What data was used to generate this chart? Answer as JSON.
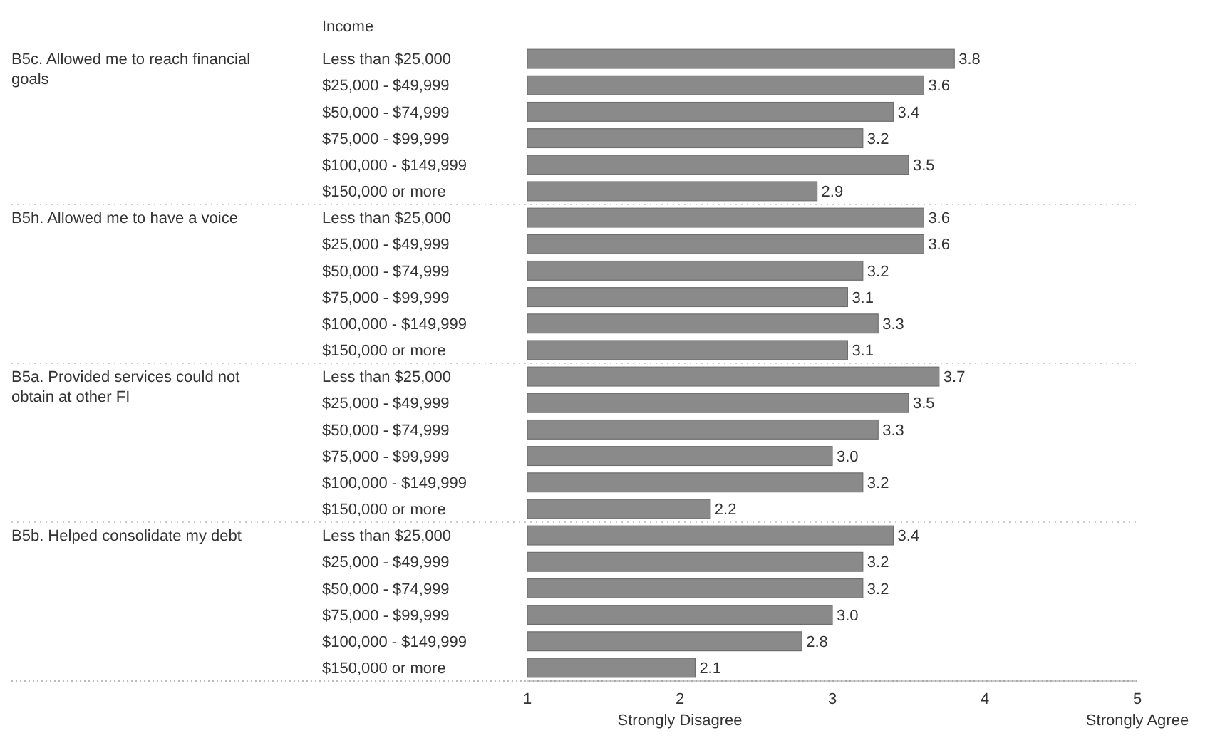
{
  "chart_data": {
    "type": "bar",
    "orientation": "horizontal",
    "ylabel": "Income",
    "categories": [
      "Less than $25,000",
      "$25,000 - $49,999",
      "$50,000 - $74,999",
      "$75,000 - $99,999",
      "$100,000 - $149,999",
      "$150,000 or more",
      "Less than $25,000",
      "$25,000 - $49,999",
      "$50,000 - $74,999",
      "$75,000 - $99,999",
      "$100,000 - $149,999",
      "$150,000 or more",
      "Less than $25,000",
      "$25,000 - $49,999",
      "$50,000 - $74,999",
      "$75,000 - $99,999",
      "$100,000 - $149,999",
      "$150,000 or more",
      "Less than $25,000",
      "$25,000 - $49,999",
      "$50,000 - $74,999",
      "$75,000 - $99,999",
      "$100,000 - $149,999",
      "$150,000 or more"
    ],
    "values": [
      3.8,
      3.6,
      3.4,
      3.2,
      3.5,
      2.9,
      3.6,
      3.6,
      3.2,
      3.1,
      3.3,
      3.1,
      3.7,
      3.5,
      3.3,
      3.0,
      3.2,
      2.2,
      3.4,
      3.2,
      3.2,
      3.0,
      2.8,
      2.1
    ],
    "value_labels": [
      "3.8",
      "3.6",
      "3.4",
      "3.2",
      "3.5",
      "2.9",
      "3.6",
      "3.6",
      "3.2",
      "3.1",
      "3.3",
      "3.1",
      "3.7",
      "3.5",
      "3.3",
      "3.0",
      "3.2",
      "2.2",
      "3.4",
      "3.2",
      "3.2",
      "3.0",
      "2.8",
      "2.1"
    ],
    "color": "#8a8a8a",
    "xlim": [
      1,
      5
    ],
    "xticks": [
      1,
      {
        "value": 2,
        "label": "2\nStrongly Disagree"
      },
      3,
      4,
      {
        "value": 5,
        "label": "5\nStrongly Agree"
      }
    ],
    "annotations": [
      "B5c. Allowed me to reach financial goals",
      "B5h. Allowed me to have a voice",
      "B5a. Provided services could not obtain at other FI",
      "B5b. Helped consolidate my debt"
    ],
    "grid": false
  }
}
